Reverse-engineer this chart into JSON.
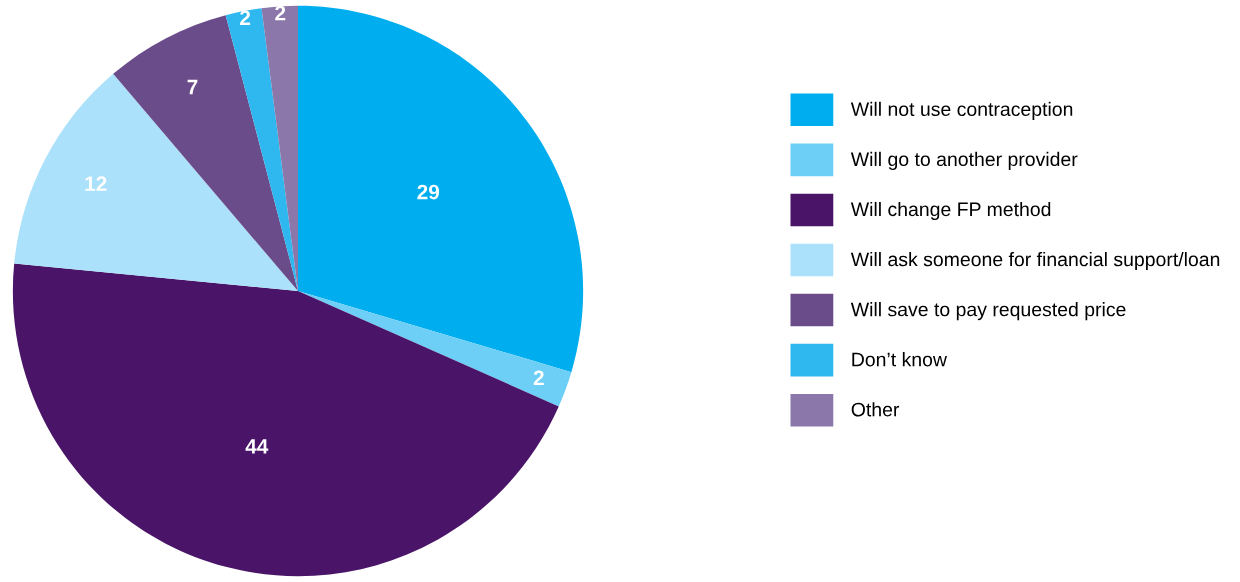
{
  "chart_data": {
    "type": "pie",
    "categories": [
      "Will not use contraception",
      "Will go to another provider",
      "Will change FP method",
      "Will ask someone for financial support/loan",
      "Will save to pay requested price",
      "Don’t know",
      "Other"
    ],
    "values": [
      29,
      2,
      44,
      12,
      7,
      2,
      2
    ],
    "colors": [
      "#00aeef",
      "#6dcff6",
      "#4a1568",
      "#abe1fa",
      "#6b4c8a",
      "#2fb8ef",
      "#8b77a9"
    ],
    "data_labels": true,
    "legend": "right"
  }
}
